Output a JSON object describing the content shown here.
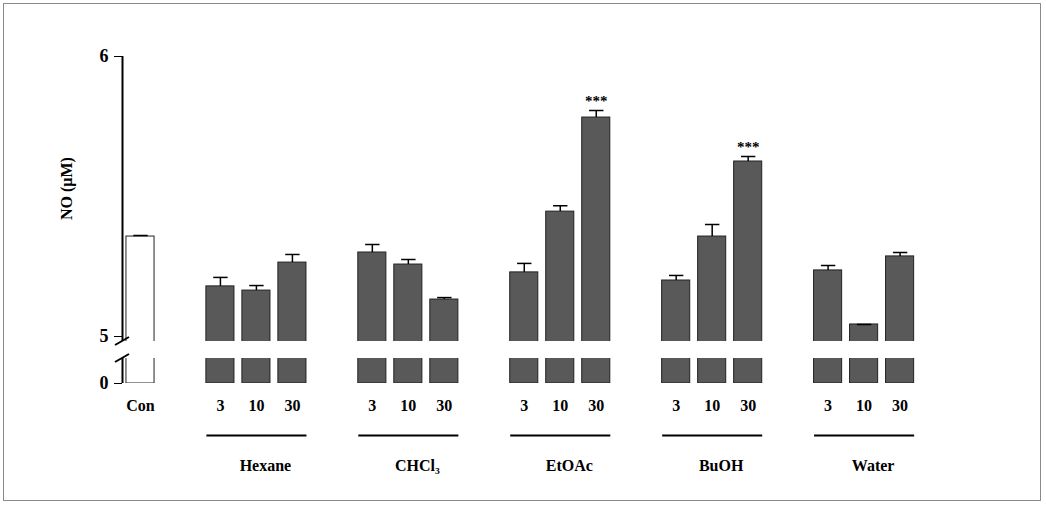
{
  "chart_data": {
    "type": "bar",
    "y_label": "NO (μM)",
    "categories": [
      "Con",
      "3",
      "10",
      "30",
      "3",
      "10",
      "30",
      "3",
      "10",
      "30",
      "3",
      "10",
      "30",
      "3",
      "10",
      "30"
    ],
    "values": [
      5.357,
      5.179,
      5.164,
      5.264,
      5.3,
      5.257,
      5.132,
      5.229,
      5.446,
      5.782,
      5.2,
      5.357,
      5.625,
      5.236,
      5.043,
      5.286
    ],
    "errors": [
      0.004,
      0.032,
      0.018,
      0.029,
      0.029,
      0.018,
      0.007,
      0.032,
      0.021,
      0.025,
      0.018,
      0.043,
      0.018,
      0.018,
      0.0,
      0.014
    ],
    "colors": [
      "#ffffff",
      "#595959",
      "#595959",
      "#595959",
      "#595959",
      "#595959",
      "#595959",
      "#595959",
      "#595959",
      "#595959",
      "#595959",
      "#595959",
      "#595959",
      "#595959",
      "#595959",
      "#595959"
    ],
    "groups": [
      {
        "label": "Hexane",
        "from": 1,
        "to": 3
      },
      {
        "label": "CHCl₃",
        "from": 4,
        "to": 6
      },
      {
        "label": "EtOAc",
        "from": 7,
        "to": 9
      },
      {
        "label": "BuOH",
        "from": 10,
        "to": 12
      },
      {
        "label": "Water",
        "from": 13,
        "to": 15
      }
    ],
    "annotations": [
      {
        "index": 9,
        "text": "***"
      },
      {
        "index": 12,
        "text": "***"
      }
    ],
    "ylim": [
      0,
      6
    ],
    "yticks": [
      0,
      5,
      6
    ],
    "y_break": [
      0,
      5
    ]
  }
}
